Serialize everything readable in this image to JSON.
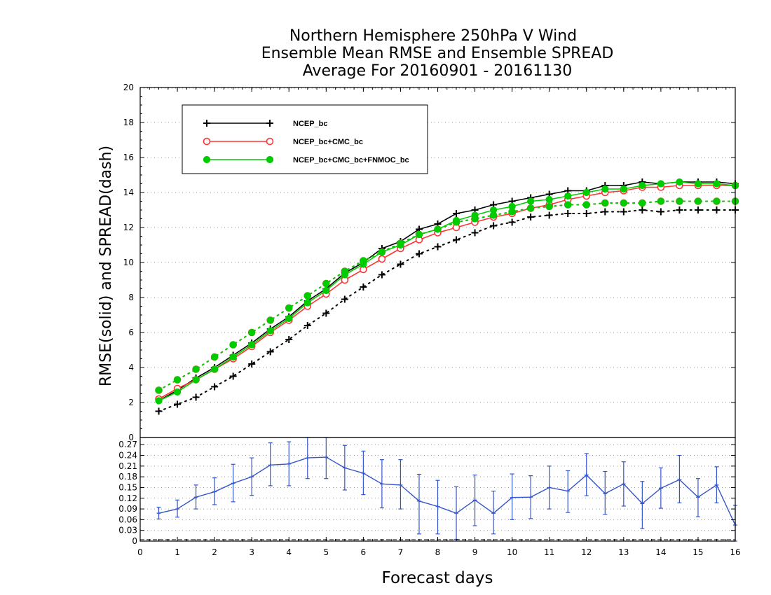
{
  "chart_data": [
    {
      "type": "line",
      "title": [
        "Northern Hemisphere 250hPa V Wind",
        "Ensemble Mean RMSE and Ensemble SPREAD",
        "Average For 20160901 - 20161130"
      ],
      "xlabel": "Forecast days",
      "ylabel": "RMSE(solid) and SPREAD(dash)",
      "xlim": [
        0,
        16
      ],
      "ylim": [
        0,
        20
      ],
      "xticks": [
        0,
        1,
        2,
        3,
        4,
        5,
        6,
        7,
        8,
        9,
        10,
        11,
        12,
        13,
        14,
        15,
        16
      ],
      "yticks": [
        0,
        2,
        4,
        6,
        8,
        10,
        12,
        14,
        16,
        18,
        20
      ],
      "grid": "horizontal dotted",
      "legend": "top-left",
      "x": [
        0.5,
        1,
        1.5,
        2,
        2.5,
        3,
        3.5,
        4,
        4.5,
        5,
        5.5,
        6,
        6.5,
        7,
        7.5,
        8,
        8.5,
        9,
        9.5,
        10,
        10.5,
        11,
        11.5,
        12,
        12.5,
        13,
        13.5,
        14,
        14.5,
        15,
        15.5,
        16
      ],
      "series": [
        {
          "name": "NCEP_bc",
          "color": "#000000",
          "marker": "plus",
          "rmse": [
            2.1,
            2.7,
            3.4,
            4.0,
            4.7,
            5.4,
            6.2,
            6.9,
            7.8,
            8.5,
            9.4,
            10.0,
            10.8,
            11.2,
            11.9,
            12.2,
            12.8,
            13.0,
            13.3,
            13.5,
            13.7,
            13.9,
            14.1,
            14.1,
            14.4,
            14.4,
            14.6,
            14.5,
            14.6,
            14.6,
            14.6,
            14.5
          ],
          "spread": [
            1.5,
            1.9,
            2.3,
            2.9,
            3.5,
            4.2,
            4.9,
            5.6,
            6.4,
            7.1,
            7.9,
            8.6,
            9.3,
            9.9,
            10.5,
            10.9,
            11.3,
            11.7,
            12.1,
            12.3,
            12.6,
            12.7,
            12.8,
            12.8,
            12.9,
            12.9,
            13.0,
            12.9,
            13.0,
            13.0,
            13.0,
            13.0
          ]
        },
        {
          "name": "NCEP_bc+CMC_bc",
          "color": "#ff3333",
          "marker": "open-circle",
          "rmse": [
            2.2,
            2.8,
            3.3,
            3.9,
            4.5,
            5.2,
            6.0,
            6.7,
            7.5,
            8.2,
            9.0,
            9.6,
            10.2,
            10.8,
            11.3,
            11.7,
            12.0,
            12.3,
            12.6,
            12.8,
            13.1,
            13.3,
            13.6,
            13.8,
            14.0,
            14.1,
            14.3,
            14.3,
            14.4,
            14.4,
            14.4,
            14.4
          ],
          "spread": [
            2.7,
            3.3,
            3.9,
            4.6,
            5.3,
            6.0,
            6.7,
            7.4,
            8.1,
            8.8,
            9.5,
            10.1,
            10.6,
            11.1,
            11.6,
            11.9,
            12.3,
            12.5,
            12.7,
            12.9,
            13.1,
            13.2,
            13.3,
            13.3,
            13.4,
            13.4,
            13.4,
            13.5,
            13.5,
            13.5,
            13.5,
            13.5
          ]
        },
        {
          "name": "NCEP_bc+CMC_bc+FNMOC_bc",
          "color": "#00cc00",
          "marker": "filled-circle",
          "rmse": [
            2.1,
            2.6,
            3.3,
            3.9,
            4.6,
            5.3,
            6.1,
            6.8,
            7.7,
            8.4,
            9.3,
            9.9,
            10.6,
            11.0,
            11.6,
            11.9,
            12.4,
            12.7,
            13.0,
            13.2,
            13.5,
            13.6,
            13.8,
            14.0,
            14.2,
            14.2,
            14.4,
            14.5,
            14.6,
            14.5,
            14.5,
            14.4
          ],
          "spread": [
            2.7,
            3.3,
            3.9,
            4.6,
            5.3,
            6.0,
            6.7,
            7.4,
            8.1,
            8.8,
            9.5,
            10.1,
            10.6,
            11.1,
            11.6,
            11.9,
            12.3,
            12.5,
            12.7,
            12.9,
            13.1,
            13.2,
            13.3,
            13.3,
            13.4,
            13.4,
            13.4,
            13.5,
            13.5,
            13.5,
            13.5,
            13.5
          ]
        }
      ]
    },
    {
      "type": "line",
      "subtype": "error-bar",
      "xlim": [
        0,
        16
      ],
      "ylim": [
        0,
        0.29
      ],
      "yticks": [
        "0",
        "0.03",
        "0.06",
        "0.09",
        "0.12",
        "0.15",
        "0.18",
        "0.21",
        "0.24",
        "0.27"
      ],
      "ytick_values": [
        0,
        0.03,
        0.06,
        0.09,
        0.12,
        0.15,
        0.18,
        0.21,
        0.24,
        0.27
      ],
      "grid": "horizontal dotted",
      "color": "#3355cc",
      "x": [
        0.5,
        1,
        1.5,
        2,
        2.5,
        3,
        3.5,
        4,
        4.5,
        5,
        5.5,
        6,
        6.5,
        7,
        7.5,
        8,
        8.5,
        9,
        9.5,
        10,
        10.5,
        11,
        11.5,
        12,
        12.5,
        13,
        13.5,
        14,
        14.5,
        15,
        15.5,
        16
      ],
      "values": [
        0.078,
        0.09,
        0.123,
        0.138,
        0.162,
        0.18,
        0.213,
        0.216,
        0.233,
        0.235,
        0.205,
        0.19,
        0.16,
        0.157,
        0.112,
        0.097,
        0.078,
        0.115,
        0.078,
        0.122,
        0.123,
        0.15,
        0.14,
        0.185,
        0.133,
        0.16,
        0.105,
        0.148,
        0.172,
        0.123,
        0.157,
        0.045
      ],
      "lower": [
        0.062,
        0.067,
        0.09,
        0.102,
        0.11,
        0.128,
        0.155,
        0.155,
        0.175,
        0.175,
        0.143,
        0.13,
        0.093,
        0.09,
        0.02,
        0.02,
        0.005,
        0.043,
        0.02,
        0.06,
        0.063,
        0.09,
        0.08,
        0.127,
        0.075,
        0.098,
        0.035,
        0.092,
        0.107,
        0.068,
        0.107,
        0.0
      ],
      "upper": [
        0.095,
        0.115,
        0.157,
        0.177,
        0.215,
        0.233,
        0.275,
        0.278,
        0.29,
        0.29,
        0.268,
        0.252,
        0.228,
        0.228,
        0.187,
        0.17,
        0.152,
        0.185,
        0.14,
        0.188,
        0.183,
        0.21,
        0.197,
        0.245,
        0.195,
        0.222,
        0.167,
        0.205,
        0.24,
        0.175,
        0.208,
        0.1
      ]
    }
  ]
}
